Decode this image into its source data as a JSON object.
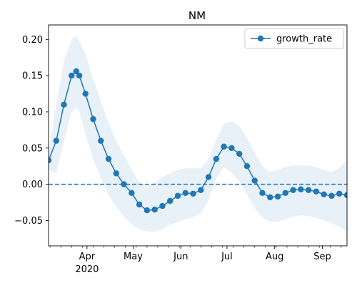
{
  "chart_data": {
    "type": "line",
    "title": "NM",
    "xlabel": "",
    "ylabel": "",
    "x_range": [
      "2020-03-07",
      "2020-09-17"
    ],
    "ylim": [
      -0.085,
      0.22
    ],
    "grid": false,
    "legend_position": "top-right",
    "reference_line": {
      "y": 0.0,
      "style": "dashed"
    },
    "colors": {
      "series": "#1f77b4",
      "band": "#e8f0f8"
    },
    "x_ticks": [
      {
        "date": "2020-04-01",
        "label": "Apr"
      },
      {
        "date": "2020-05-01",
        "label": "May"
      },
      {
        "date": "2020-06-01",
        "label": "Jun"
      },
      {
        "date": "2020-07-01",
        "label": "Jul"
      },
      {
        "date": "2020-08-01",
        "label": "Aug"
      },
      {
        "date": "2020-09-01",
        "label": "Sep"
      }
    ],
    "x_year_label": {
      "date": "2020-04-01",
      "label": "2020"
    },
    "y_ticks": [
      {
        "value": 0.2,
        "label": "0.20"
      },
      {
        "value": 0.15,
        "label": "0.15"
      },
      {
        "value": 0.1,
        "label": "0.10"
      },
      {
        "value": 0.05,
        "label": "0.05"
      },
      {
        "value": 0.0,
        "label": "0.00"
      },
      {
        "value": -0.05,
        "label": "−0.05"
      }
    ],
    "series": [
      {
        "name": "growth_rate",
        "marker": "circle",
        "x": [
          "2020-03-07",
          "2020-03-12",
          "2020-03-17",
          "2020-03-22",
          "2020-03-25",
          "2020-03-27",
          "2020-03-31",
          "2020-04-05",
          "2020-04-10",
          "2020-04-15",
          "2020-04-20",
          "2020-04-25",
          "2020-04-30",
          "2020-05-05",
          "2020-05-10",
          "2020-05-15",
          "2020-05-20",
          "2020-05-25",
          "2020-05-30",
          "2020-06-04",
          "2020-06-09",
          "2020-06-14",
          "2020-06-19",
          "2020-06-24",
          "2020-06-29",
          "2020-07-04",
          "2020-07-09",
          "2020-07-14",
          "2020-07-19",
          "2020-07-24",
          "2020-07-29",
          "2020-08-03",
          "2020-08-08",
          "2020-08-13",
          "2020-08-18",
          "2020-08-23",
          "2020-08-28",
          "2020-09-02",
          "2020-09-07",
          "2020-09-12",
          "2020-09-17"
        ],
        "values": [
          0.033,
          0.06,
          0.11,
          0.15,
          0.156,
          0.15,
          0.125,
          0.09,
          0.06,
          0.035,
          0.015,
          0.0,
          -0.012,
          -0.028,
          -0.036,
          -0.035,
          -0.03,
          -0.023,
          -0.016,
          -0.012,
          -0.013,
          -0.008,
          0.01,
          0.035,
          0.052,
          0.05,
          0.042,
          0.025,
          0.005,
          -0.012,
          -0.018,
          -0.017,
          -0.012,
          -0.008,
          -0.007,
          -0.008,
          -0.01,
          -0.014,
          -0.016,
          -0.013,
          -0.015
        ],
        "upper": [
          0.045,
          0.11,
          0.17,
          0.2,
          0.205,
          0.198,
          0.18,
          0.145,
          0.115,
          0.085,
          0.06,
          0.04,
          0.02,
          0.003,
          -0.005,
          0.002,
          0.01,
          0.015,
          0.02,
          0.022,
          0.022,
          0.022,
          0.035,
          0.062,
          0.084,
          0.087,
          0.08,
          0.064,
          0.044,
          0.025,
          0.017,
          0.02,
          0.024,
          0.026,
          0.026,
          0.026,
          0.024,
          0.02,
          0.017,
          0.022,
          0.035
        ],
        "lower": [
          0.02,
          0.015,
          0.06,
          0.1,
          0.107,
          0.1,
          0.07,
          0.035,
          0.008,
          -0.015,
          -0.03,
          -0.045,
          -0.055,
          -0.062,
          -0.065,
          -0.066,
          -0.062,
          -0.056,
          -0.052,
          -0.048,
          -0.046,
          -0.04,
          -0.022,
          0.008,
          0.024,
          0.016,
          0.004,
          -0.014,
          -0.033,
          -0.046,
          -0.052,
          -0.052,
          -0.048,
          -0.045,
          -0.043,
          -0.044,
          -0.046,
          -0.05,
          -0.054,
          -0.058,
          -0.066
        ]
      }
    ]
  }
}
